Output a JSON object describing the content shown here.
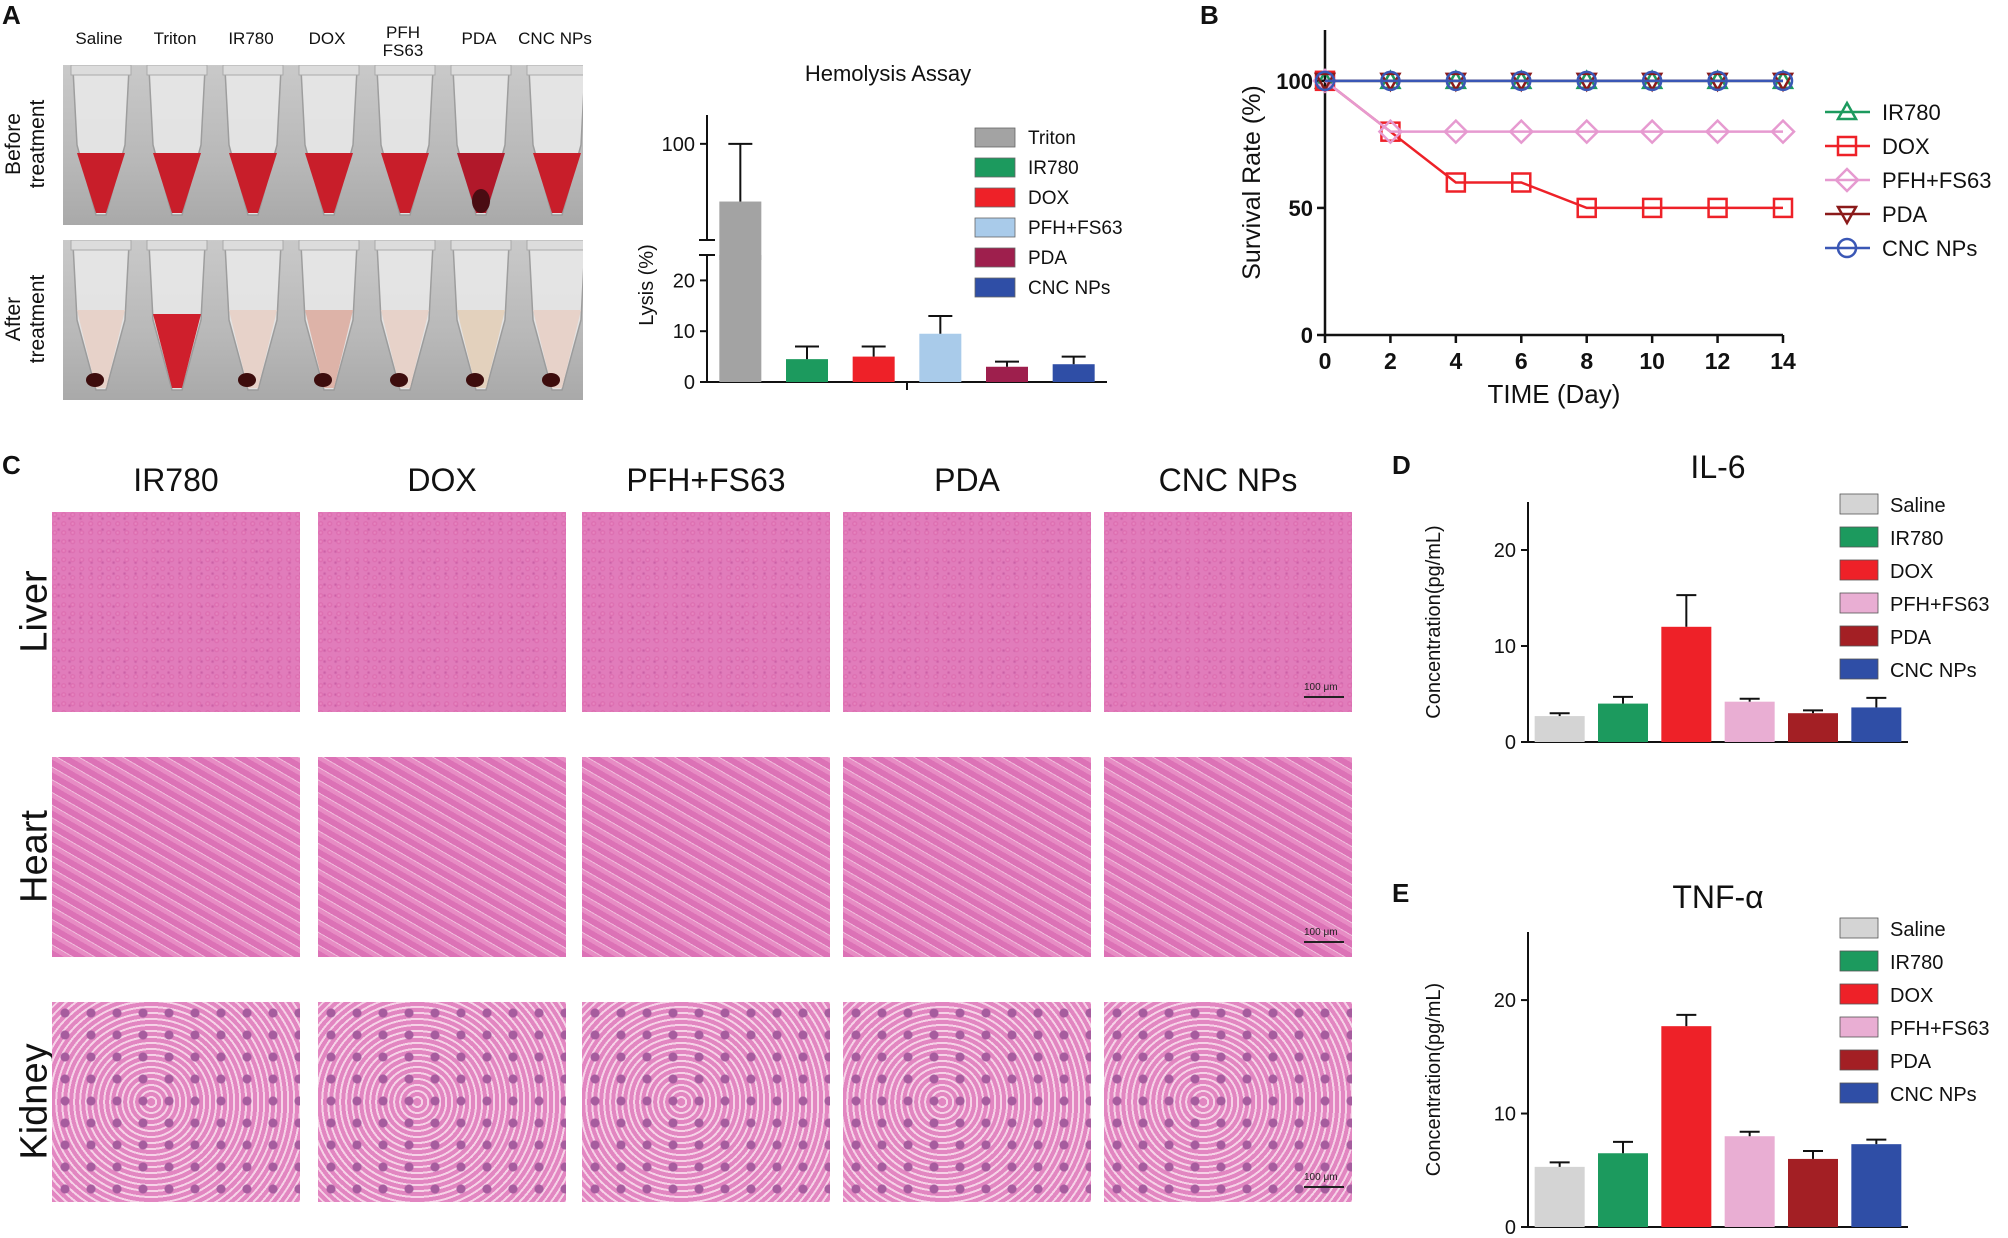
{
  "panels": {
    "A": "A",
    "B": "B",
    "C": "C",
    "D": "D",
    "E": "E"
  },
  "colors": {
    "saline": "#d4d4d4",
    "triton": "#a3a3a3",
    "ir780": "#1c9a5e",
    "dox": "#ee2128",
    "pfh": "#a9cbea",
    "pfh_pink": "#e9aed3",
    "pda": "#9e1f4d",
    "pda_dark": "#a31f24",
    "cnc": "#2f4ea6",
    "blood": "#c81e2a",
    "he_pink": "#df6fb0"
  },
  "tube_photo": {
    "columns": [
      "Saline",
      "Triton",
      "IR780",
      "DOX",
      "PFH\nFS63",
      "PDA",
      "CNC NPs"
    ],
    "rows": [
      "Before\ntreatment",
      "After\ntreatment"
    ],
    "before_fill": [
      "blood",
      "blood",
      "blood",
      "blood",
      "blood",
      "blood-dark",
      "blood"
    ],
    "after_fill": [
      "pale",
      "red",
      "pale",
      "pale-pink",
      "pale",
      "pale-yellow",
      "pale"
    ]
  },
  "histology": {
    "columns": [
      "IR780",
      "DOX",
      "PFH+FS63",
      "PDA",
      "CNC NPs"
    ],
    "rows": [
      "Liver",
      "Heart",
      "Kidney"
    ],
    "scale_label": "100 μm"
  },
  "chart_data": [
    {
      "panel": "A",
      "type": "bar",
      "title": "Hemolysis Assay",
      "ylabel": "Lysis (%)",
      "xlabel": "",
      "y_axis_break": {
        "lower": [
          0,
          25
        ],
        "upper": [
          90,
          103
        ]
      },
      "yticks": [
        0,
        10,
        20,
        100
      ],
      "categories": [
        "Triton",
        "IR780",
        "DOX",
        "PFH+FS63",
        "PDA",
        "CNC NPs"
      ],
      "values": [
        94,
        4.5,
        5,
        9.5,
        3,
        3.5
      ],
      "errors": [
        6,
        2.5,
        2,
        3.5,
        1,
        1.5
      ],
      "colors": [
        "#a3a3a3",
        "#1c9a5e",
        "#ee2128",
        "#a9cbea",
        "#9e1f4d",
        "#2f4ea6"
      ],
      "legend": [
        "Triton",
        "IR780",
        "DOX",
        "PFH+FS63",
        "PDA",
        "CNC NPs"
      ],
      "legend_position": "right"
    },
    {
      "panel": "B",
      "type": "line",
      "title": "",
      "xlabel": "TIME (Day)",
      "ylabel": "Survival Rate (%)",
      "xlim": [
        0,
        14
      ],
      "ylim": [
        0,
        120
      ],
      "xticks": [
        0,
        2,
        4,
        6,
        8,
        10,
        12,
        14
      ],
      "yticks": [
        0,
        50,
        100
      ],
      "x": [
        0,
        2,
        4,
        6,
        8,
        10,
        12,
        14
      ],
      "series": [
        {
          "name": "IR780",
          "values": [
            100,
            100,
            100,
            100,
            100,
            100,
            100,
            100
          ],
          "color": "#1c9a5e",
          "marker": "triangle-up"
        },
        {
          "name": "DOX",
          "values": [
            100,
            80,
            60,
            60,
            50,
            50,
            50,
            50
          ],
          "color": "#ee2128",
          "marker": "square"
        },
        {
          "name": "PFH+FS63",
          "values": [
            100,
            80,
            80,
            80,
            80,
            80,
            80,
            80
          ],
          "color": "#e69ad0",
          "marker": "diamond"
        },
        {
          "name": "PDA",
          "values": [
            100,
            100,
            100,
            100,
            100,
            100,
            100,
            100
          ],
          "color": "#8b1a1a",
          "marker": "triangle-down"
        },
        {
          "name": "CNC NPs",
          "values": [
            100,
            100,
            100,
            100,
            100,
            100,
            100,
            100
          ],
          "color": "#3a57b5",
          "marker": "circle"
        }
      ],
      "legend_position": "right"
    },
    {
      "panel": "D",
      "type": "bar",
      "title": "IL-6",
      "xlabel": "",
      "ylabel": "Concentration(pg/mL)",
      "ylim": [
        0,
        25
      ],
      "yticks": [
        0,
        10,
        20
      ],
      "categories": [
        "Saline",
        "IR780",
        "DOX",
        "PFH+FS63",
        "PDA",
        "CNC NPs"
      ],
      "values": [
        2.7,
        4.0,
        12.0,
        4.2,
        3.0,
        3.6
      ],
      "errors": [
        0.3,
        0.7,
        3.3,
        0.3,
        0.3,
        1.0
      ],
      "colors": [
        "#d4d4d4",
        "#1c9a5e",
        "#ee2128",
        "#e9aed3",
        "#a31f24",
        "#2f4ea6"
      ],
      "legend": [
        "Saline",
        "IR780",
        "DOX",
        "PFH+FS63",
        "PDA",
        "CNC NPs"
      ],
      "legend_position": "right"
    },
    {
      "panel": "E",
      "type": "bar",
      "title": "TNF-α",
      "xlabel": "",
      "ylabel": "Concentration(pg/mL)",
      "ylim": [
        0,
        26
      ],
      "yticks": [
        0,
        10,
        20
      ],
      "categories": [
        "Saline",
        "IR780",
        "DOX",
        "PFH+FS63",
        "PDA",
        "CNC NPs"
      ],
      "values": [
        5.3,
        6.5,
        17.7,
        8.0,
        6.0,
        7.3
      ],
      "errors": [
        0.4,
        1.0,
        1.0,
        0.4,
        0.7,
        0.4
      ],
      "colors": [
        "#d4d4d4",
        "#1c9a5e",
        "#ee2128",
        "#e9aed3",
        "#a31f24",
        "#2f4ea6"
      ],
      "legend": [
        "Saline",
        "IR780",
        "DOX",
        "PFH+FS63",
        "PDA",
        "CNC NPs"
      ],
      "legend_position": "right"
    }
  ]
}
